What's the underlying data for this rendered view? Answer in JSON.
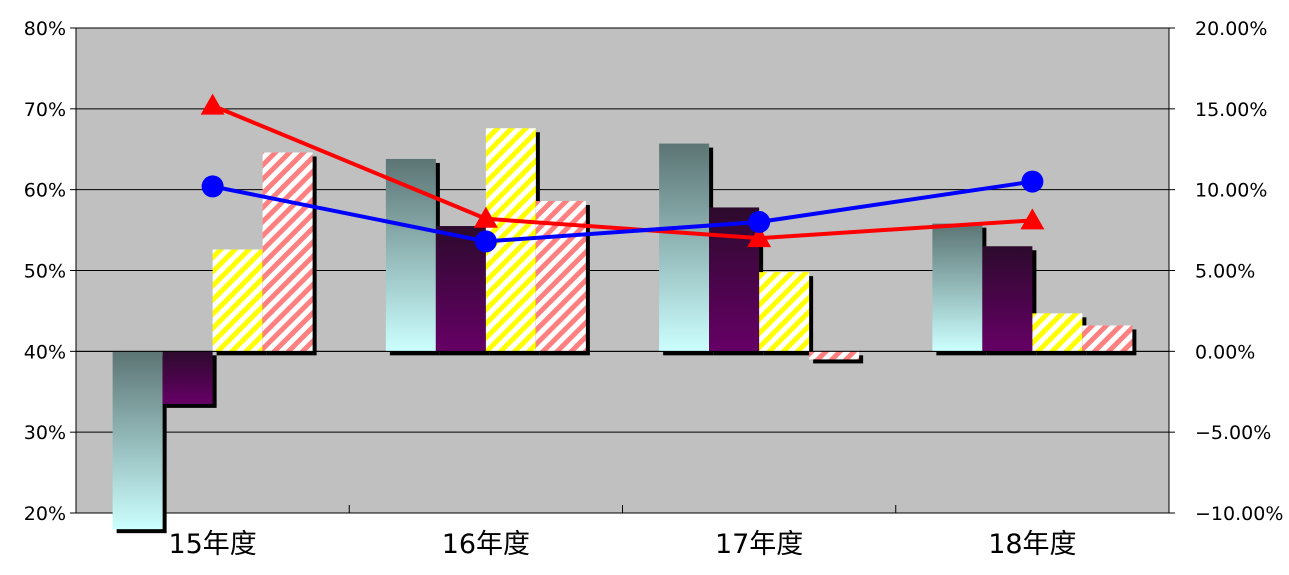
{
  "chart_data": {
    "type": "bar",
    "categories": [
      "15年度",
      "16年度",
      "17年度",
      "18年度"
    ],
    "y_left": {
      "ylim": [
        20,
        80
      ],
      "ticks": [
        20,
        30,
        40,
        50,
        60,
        70,
        80
      ],
      "tick_labels": [
        "20%",
        "30%",
        "40%",
        "50%",
        "60%",
        "70%",
        "80%"
      ],
      "baseline": 40
    },
    "y_right": {
      "ylim": [
        -10,
        20
      ],
      "ticks": [
        -10,
        -5,
        0,
        5,
        10,
        15,
        20
      ],
      "tick_labels": [
        "−10.00%",
        "−5.00%",
        "0.00%",
        "5.00%",
        "10.00%",
        "15.00%",
        "20.00%"
      ]
    },
    "bar_series": [
      {
        "values": [
          18,
          63.8,
          65.7,
          55.8
        ],
        "style": "gradient-teal"
      },
      {
        "values": [
          33.5,
          55.5,
          57.8,
          53.0
        ],
        "style": "gradient-purple"
      },
      {
        "values": [
          52.6,
          67.6,
          49.8,
          44.7
        ],
        "style": "hatch-yellow"
      },
      {
        "values": [
          64.6,
          58.6,
          39.0,
          43.2
        ],
        "style": "hatch-pink"
      }
    ],
    "line_series": [
      {
        "axis": "right",
        "marker": "triangle",
        "color": "#ff0000",
        "values": [
          15.2,
          8.2,
          7.0,
          8.1
        ]
      },
      {
        "axis": "right",
        "marker": "circle",
        "color": "#0000ff",
        "values": [
          10.2,
          6.8,
          8.0,
          10.5
        ]
      }
    ],
    "colors": {
      "plot_bg": "#c0c0c0",
      "teal_top": "#5c7474",
      "teal_bottom": "#ccffff",
      "purple_top": "#2c0a2c",
      "purple_bottom": "#660066",
      "yellow": "#ffff00",
      "pink": "#ff8080"
    },
    "grid": true
  }
}
